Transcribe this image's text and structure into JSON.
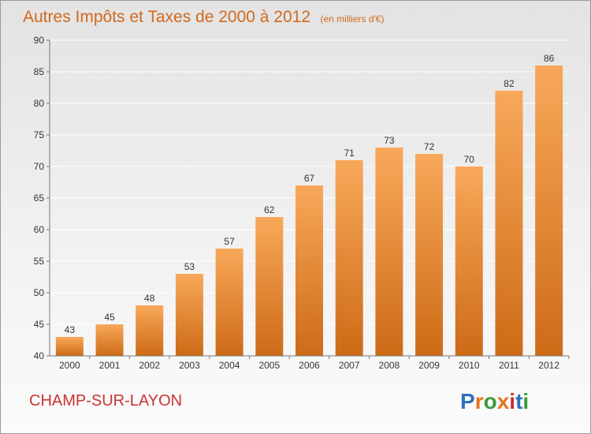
{
  "title": "Autres Impôts et Taxes de 2000 à 2012",
  "subtitle": "(en milliers d'€)",
  "location": "CHAMP-SUR-LAYON",
  "brand": {
    "text": "Proxiti",
    "letter_colors": [
      "#2f6fbf",
      "#e8731a",
      "#3a9a3a",
      "#e8731a",
      "#cc2e2e",
      "#2f6fbf",
      "#3a9a3a"
    ]
  },
  "colors": {
    "bar_top": "#f8a85a",
    "bar_bottom": "#cd6b17",
    "grid": "#ffffff",
    "axis": "#777777"
  },
  "chart_data": {
    "type": "bar",
    "categories": [
      "2000",
      "2001",
      "2002",
      "2003",
      "2004",
      "2005",
      "2006",
      "2007",
      "2008",
      "2009",
      "2010",
      "2011",
      "2012"
    ],
    "values": [
      43,
      45,
      48,
      53,
      57,
      62,
      67,
      71,
      73,
      72,
      70,
      82,
      86
    ],
    "ylim": [
      40,
      90
    ],
    "yticks": [
      40,
      45,
      50,
      55,
      60,
      65,
      70,
      75,
      80,
      85,
      90
    ],
    "grid": true,
    "legend": "none"
  }
}
